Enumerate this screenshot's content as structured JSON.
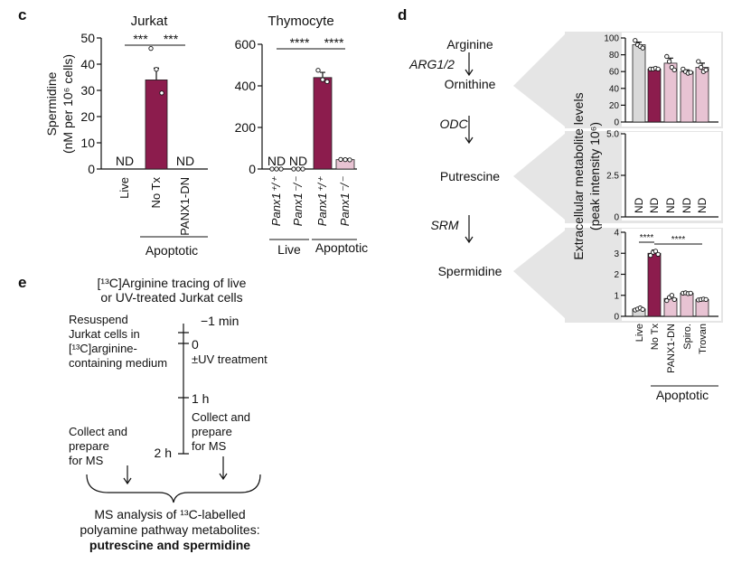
{
  "panels": [
    "c",
    "d",
    "e"
  ],
  "chart_data": [
    {
      "type": "bar",
      "title": "Jurkat",
      "ylabel": [
        "Spermidine",
        "(nM per 10⁶ cells)"
      ],
      "categories": [
        "Live",
        "No Tx",
        "PANX1-DN"
      ],
      "values": [
        null,
        34,
        null
      ],
      "value_labels": [
        "ND",
        null,
        "ND"
      ],
      "errors": [
        null,
        4.5,
        null
      ],
      "points": [
        [],
        [
          46,
          38,
          29
        ],
        []
      ],
      "colors": [
        null,
        "#8c1c4d",
        null
      ],
      "ylim": [
        0,
        50
      ],
      "yticks": [
        0,
        10,
        20,
        30,
        40,
        50
      ],
      "significance": [
        "***",
        "***"
      ],
      "group_labels": [
        "Apoptotic"
      ]
    },
    {
      "type": "bar",
      "title": "Thymocyte",
      "categories": [
        "Panx1⁺/⁺",
        "Panx1⁻/⁻",
        "Panx1⁺/⁺",
        "Panx1⁻/⁻"
      ],
      "values": [
        null,
        null,
        440,
        45
      ],
      "value_labels": [
        "ND",
        "ND",
        null,
        null
      ],
      "errors": [
        null,
        null,
        25,
        4
      ],
      "points": [
        [
          0,
          0,
          0
        ],
        [
          0,
          0,
          0
        ],
        [
          475,
          430,
          420
        ],
        [
          46,
          45,
          44
        ]
      ],
      "colors": [
        null,
        null,
        "#8c1c4d",
        "#e8c3d3"
      ],
      "ylim": [
        0,
        600
      ],
      "yticks": [
        0,
        200,
        400,
        600
      ],
      "significance": [
        "****",
        "****"
      ],
      "group_labels": [
        "Live",
        "Apoptotic"
      ]
    },
    {
      "type": "bar",
      "values": [
        92,
        63,
        70,
        60,
        65
      ],
      "errors": [
        3,
        1,
        6,
        2,
        5
      ],
      "points": [
        [
          97,
          92,
          90,
          88
        ],
        [
          63,
          63,
          64,
          63
        ],
        [
          78,
          72,
          65,
          62
        ],
        [
          63,
          60,
          58,
          59
        ],
        [
          72,
          65,
          60,
          62
        ]
      ],
      "colors": [
        "#d9d9d9",
        "#8c1c4d",
        "#e8c3d3",
        "#e8c3d3",
        "#e8c3d3"
      ],
      "ylim": [
        0,
        100
      ],
      "yticks": [
        0,
        20,
        40,
        60,
        80,
        100
      ]
    },
    {
      "type": "bar",
      "ylabel": [
        "Extracellular metabolite levels",
        "(peak intensity 10⁶)"
      ],
      "values": [
        null,
        null,
        null,
        null,
        null
      ],
      "value_labels": [
        "ND",
        "ND",
        "ND",
        "ND",
        "ND"
      ],
      "ylim": [
        0,
        5
      ],
      "yticks": [
        0,
        2.5,
        {
          "value": 5,
          "label": "5.0"
        }
      ]
    },
    {
      "type": "bar",
      "categories": [
        "Live",
        "No Tx",
        "PANX1-DN",
        "Spiro.",
        "Trovan"
      ],
      "values": [
        0.35,
        3.0,
        0.85,
        1.1,
        0.8
      ],
      "errors": [
        0.05,
        0.15,
        0.1,
        0.05,
        0.05
      ],
      "points": [
        [
          0.3,
          0.35,
          0.4,
          0.33
        ],
        [
          2.9,
          3.05,
          3.1,
          2.95
        ],
        [
          0.75,
          0.9,
          1.0,
          0.8
        ],
        [
          1.1,
          1.12,
          1.08,
          1.1
        ],
        [
          0.78,
          0.8,
          0.82,
          0.8
        ]
      ],
      "colors": [
        "#d9d9d9",
        "#8c1c4d",
        "#e8c3d3",
        "#e8c3d3",
        "#e8c3d3"
      ],
      "ylim": [
        0,
        4
      ],
      "yticks": [
        0,
        1,
        2,
        3,
        4
      ],
      "significance": [
        "****",
        "****"
      ],
      "group_labels": [
        "Apoptotic"
      ]
    }
  ],
  "pathway": {
    "metabolites": [
      "Arginine",
      "Ornithine",
      "Putrescine",
      "Spermidine"
    ],
    "enzymes": [
      "ARG1/2",
      "ODC",
      "SRM"
    ]
  },
  "protocol": {
    "title": [
      "[¹³C]Arginine tracing of live",
      "or UV-treated Jurkat cells"
    ],
    "times": [
      "−1 min",
      "0",
      "1 h",
      "2 h"
    ],
    "steps_left": [
      [
        "Resuspend",
        "Jurkat cells in",
        "[¹³C]arginine-",
        "containing medium"
      ],
      [
        "Collect and",
        "prepare",
        "for MS"
      ]
    ],
    "steps_right": [
      [
        "±UV treatment"
      ],
      [
        "Collect and",
        "prepare",
        "for MS"
      ]
    ],
    "result": [
      "MS analysis of ¹³C-labelled",
      "polyamine pathway metabolites:",
      "putrescine and spermidine"
    ]
  }
}
